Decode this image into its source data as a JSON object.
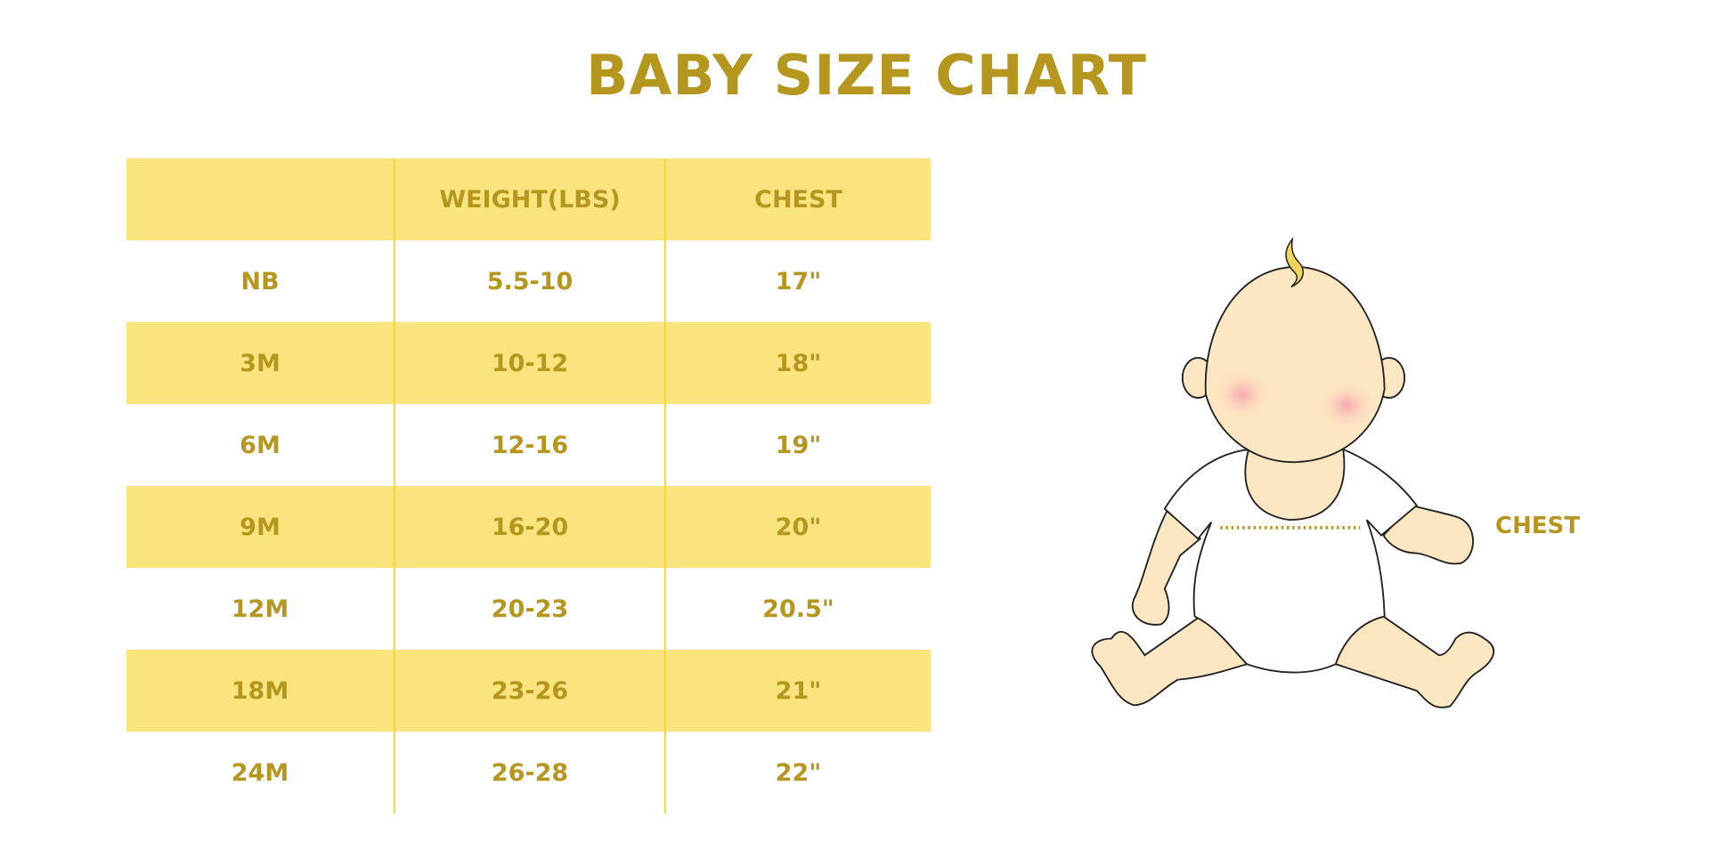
{
  "chart_data": {
    "type": "table",
    "title": "BABY SIZE CHART",
    "columns": [
      "",
      "WEIGHT(LBS)",
      "CHEST"
    ],
    "rows": [
      [
        "NB",
        "5.5-10",
        "17\""
      ],
      [
        "3M",
        "10-12",
        "18\""
      ],
      [
        "6M",
        "12-16",
        "19\""
      ],
      [
        "9M",
        "16-20",
        "20\""
      ],
      [
        "12M",
        "20-23",
        "20.5\""
      ],
      [
        "18M",
        "23-26",
        "21\""
      ],
      [
        "24M",
        "26-28",
        "22\""
      ]
    ]
  },
  "illustration": {
    "chest_label": "CHEST"
  },
  "colors": {
    "text": "#b5961f",
    "band": "#fbe47d",
    "skin": "#fde7c2"
  }
}
